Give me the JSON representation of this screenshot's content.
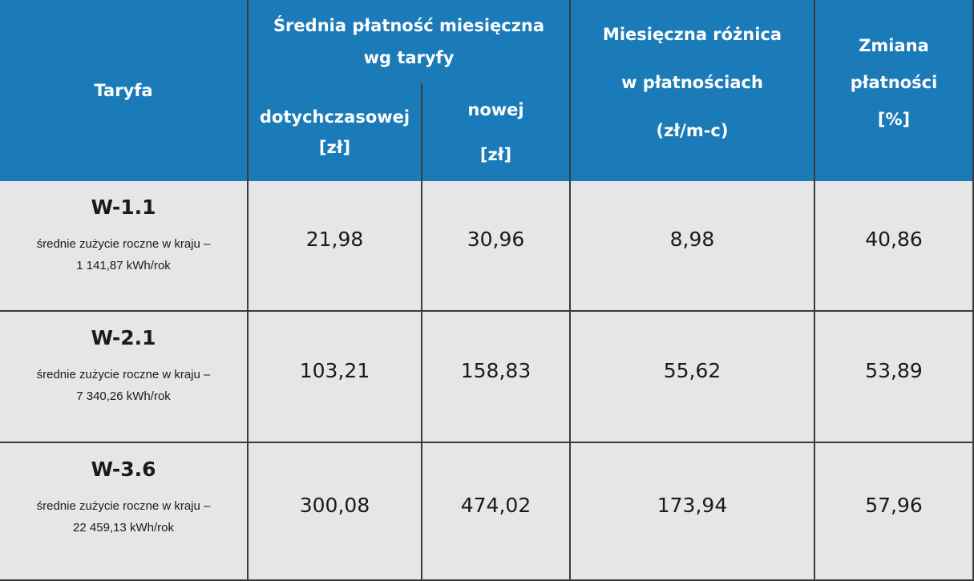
{
  "header": {
    "tariff": "Taryfa",
    "average": [
      "Średnia płatność miesięczna",
      "wg taryfy"
    ],
    "previous": [
      "dotychczasowej",
      "[zł]"
    ],
    "new": [
      "nowej",
      "[zł]"
    ],
    "difference": [
      "Miesięczna różnica",
      "w płatnościach",
      "(zł/m-c)"
    ],
    "change": [
      "Zmiana",
      "płatności",
      "[%]"
    ]
  },
  "table": {
    "rows": [
      {
        "tariff": "W-1.1",
        "note": [
          "średnie zużycie roczne w kraju –",
          "1 141,87 kWh/rok"
        ],
        "previous": "21,98",
        "new": "30,96",
        "difference": "8,98",
        "change": "40,86"
      },
      {
        "tariff": "W-2.1",
        "note": [
          "średnie zużycie roczne w kraju –",
          "7 340,26 kWh/rok"
        ],
        "previous": "103,21",
        "new": "158,83",
        "difference": "55,62",
        "change": "53,89"
      },
      {
        "tariff": "W-3.6",
        "note": [
          "średnie zużycie roczne w kraju –",
          "22 459,13 kWh/rok"
        ],
        "previous": "300,08",
        "new": "474,02",
        "difference": "173,94",
        "change": "57,96"
      }
    ]
  }
}
